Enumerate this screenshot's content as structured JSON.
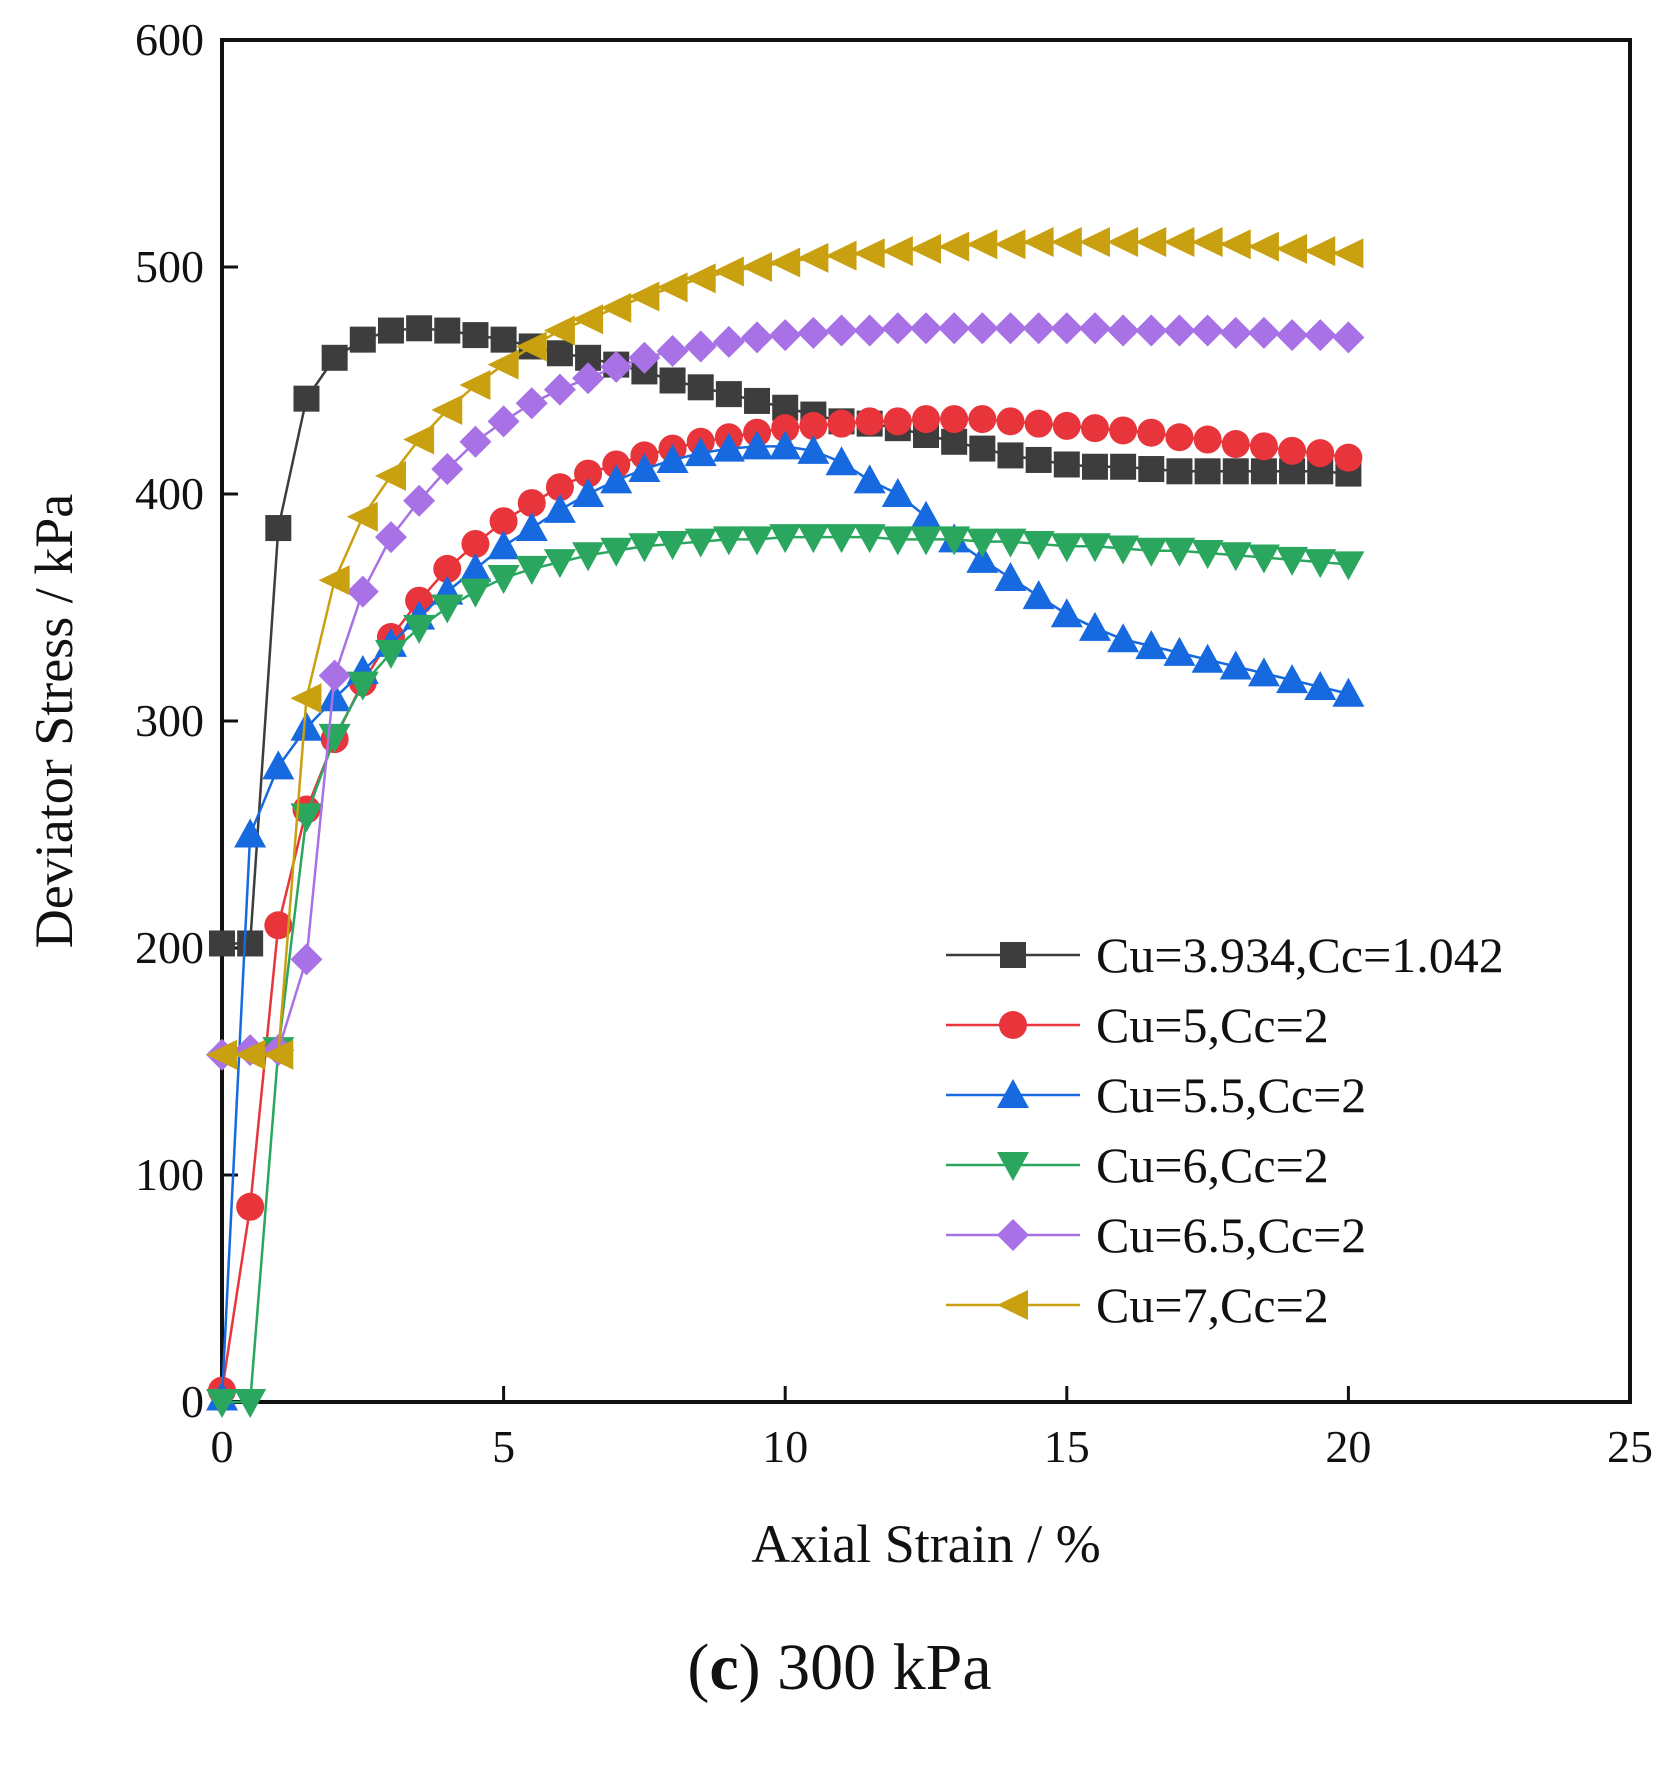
{
  "caption": {
    "open_paren": "(",
    "letter": "c",
    "rest": ") 300 kPa"
  },
  "chart_data": {
    "type": "line",
    "title": "",
    "xlabel": "Axial Strain / %",
    "ylabel": "Deviator Stress / kPa",
    "xlim": [
      0,
      25
    ],
    "ylim": [
      0,
      600
    ],
    "x_ticks": [
      0,
      5,
      10,
      15,
      20,
      25
    ],
    "y_ticks": [
      0,
      100,
      200,
      300,
      400,
      500,
      600
    ],
    "grid": false,
    "legend_position": "bottom-right",
    "x": [
      0,
      0.5,
      1,
      1.5,
      2,
      2.5,
      3,
      3.5,
      4,
      4.5,
      5,
      5.5,
      6,
      6.5,
      7,
      7.5,
      8,
      8.5,
      9,
      9.5,
      10,
      10.5,
      11,
      11.5,
      12,
      12.5,
      13,
      13.5,
      14,
      14.5,
      15,
      15.5,
      16,
      16.5,
      17,
      17.5,
      18,
      18.5,
      19,
      19.5,
      20
    ],
    "series": [
      {
        "name": "Cu=3.934,Cc=1.042",
        "color": "#3d3d3d",
        "marker": "square",
        "values": [
          202,
          202,
          385,
          442,
          460,
          468,
          472,
          473,
          472,
          470,
          468,
          465,
          462,
          460,
          457,
          454,
          450,
          447,
          444,
          441,
          438,
          435,
          432,
          431,
          429,
          426,
          423,
          420,
          417,
          415,
          413,
          412,
          412,
          411,
          410,
          410,
          410,
          410,
          410,
          410,
          409
        ]
      },
      {
        "name": "Cu=5,Cc=2",
        "color": "#e8353b",
        "marker": "circle",
        "values": [
          5,
          86,
          210,
          261,
          292,
          317,
          337,
          353,
          367,
          378,
          388,
          396,
          403,
          409,
          413,
          417,
          420,
          423,
          425,
          427,
          429,
          430,
          431,
          432,
          432,
          433,
          433,
          433,
          432,
          431,
          430,
          429,
          428,
          427,
          425,
          424,
          422,
          421,
          419,
          418,
          416
        ]
      },
      {
        "name": "Cu=5.5,Cc=2",
        "color": "#1769e0",
        "marker": "triangle-up",
        "values": [
          2,
          250,
          280,
          297,
          310,
          322,
          334,
          346,
          357,
          367,
          377,
          385,
          393,
          400,
          406,
          411,
          415,
          418,
          420,
          421,
          421,
          419,
          414,
          406,
          400,
          390,
          380,
          371,
          363,
          355,
          347,
          341,
          336,
          333,
          330,
          327,
          324,
          321,
          318,
          315,
          312
        ]
      },
      {
        "name": "Cu=6,Cc=2",
        "color": "#2ba65f",
        "marker": "triangle-down",
        "values": [
          0,
          0,
          155,
          258,
          293,
          316,
          330,
          341,
          350,
          357,
          363,
          367,
          370,
          373,
          375,
          377,
          378,
          379,
          380,
          380,
          381,
          381,
          381,
          381,
          380,
          380,
          380,
          379,
          379,
          378,
          377,
          377,
          376,
          375,
          375,
          374,
          373,
          372,
          371,
          370,
          369
        ]
      },
      {
        "name": "Cu=6.5,Cc=2",
        "color": "#a872e6",
        "marker": "diamond",
        "values": [
          153,
          155,
          155,
          195,
          320,
          357,
          381,
          397,
          411,
          423,
          432,
          440,
          446,
          451,
          456,
          460,
          463,
          465,
          467,
          469,
          470,
          471,
          472,
          472,
          473,
          473,
          473,
          473,
          473,
          473,
          473,
          473,
          472,
          472,
          472,
          472,
          471,
          471,
          470,
          470,
          469
        ]
      },
      {
        "name": "Cu=7,Cc=2",
        "color": "#c9a00f",
        "marker": "triangle-left",
        "values": [
          153,
          153,
          153,
          310,
          362,
          390,
          408,
          424,
          437,
          448,
          457,
          465,
          472,
          477,
          482,
          487,
          491,
          495,
          498,
          500,
          502,
          504,
          505,
          506,
          507,
          508,
          509,
          510,
          510,
          511,
          511,
          511,
          511,
          511,
          511,
          511,
          510,
          509,
          508,
          507,
          506
        ]
      }
    ]
  }
}
